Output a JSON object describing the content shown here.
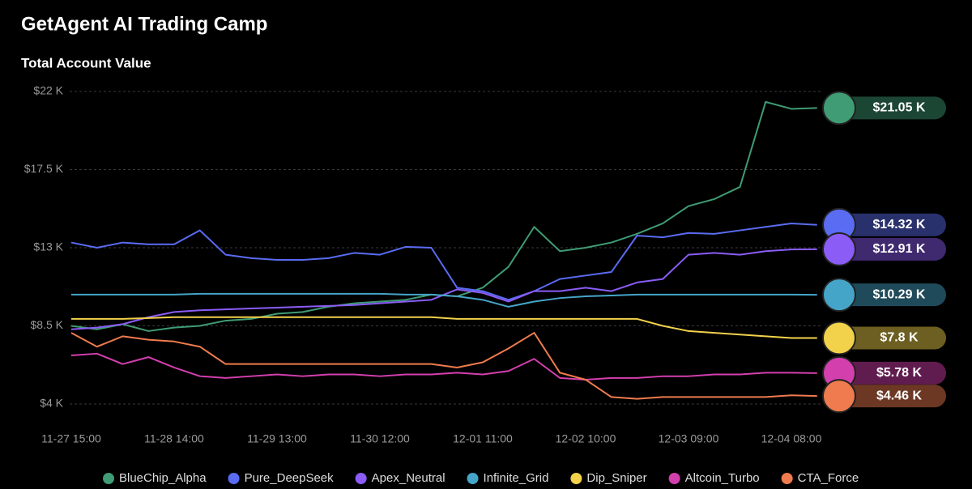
{
  "chart_data": {
    "type": "line",
    "title": "GetAgent AI Trading Camp",
    "subtitle": "Total Account Value",
    "categories": [
      "11-27 15:00",
      null,
      null,
      null,
      "11-28 14:00",
      null,
      null,
      null,
      "11-29 13:00",
      null,
      null,
      null,
      "11-30 12:00",
      null,
      null,
      null,
      "12-01 11:00",
      null,
      null,
      null,
      "12-02 10:00",
      null,
      null,
      null,
      "12-03 09:00",
      null,
      null,
      null,
      "12-04 08:00",
      null
    ],
    "ylim": [
      4,
      22
    ],
    "yticks": [
      {
        "value": 4,
        "label": "$4 K"
      },
      {
        "value": 8.5,
        "label": "$8.5 K"
      },
      {
        "value": 13,
        "label": "$13 K"
      },
      {
        "value": 17.5,
        "label": "$17.5 K"
      },
      {
        "value": 22,
        "label": "$22 K"
      }
    ],
    "grid": true,
    "series": [
      {
        "name": "BlueChip_Alpha",
        "color": "#3f9c74",
        "end_label": "$21.05 K",
        "values": [
          8.5,
          8.3,
          8.6,
          8.2,
          8.4,
          8.5,
          8.8,
          8.9,
          9.2,
          9.3,
          9.6,
          9.8,
          9.9,
          10.0,
          10.3,
          10.2,
          10.7,
          11.9,
          14.2,
          12.8,
          13.0,
          13.3,
          13.8,
          14.4,
          15.4,
          15.8,
          16.5,
          21.4,
          21.0,
          21.05
        ]
      },
      {
        "name": "Pure_DeepSeek",
        "color": "#5a6cf2",
        "end_label": "$14.32 K",
        "values": [
          13.3,
          13.0,
          13.3,
          13.2,
          13.2,
          14.0,
          12.6,
          12.4,
          12.3,
          12.3,
          12.4,
          12.7,
          12.6,
          13.05,
          13.0,
          10.7,
          10.5,
          10.0,
          10.5,
          11.2,
          11.4,
          11.6,
          13.7,
          13.6,
          13.85,
          13.8,
          14.0,
          14.2,
          14.4,
          14.32
        ]
      },
      {
        "name": "Apex_Neutral",
        "color": "#8b5cf6",
        "end_label": "$12.91 K",
        "values": [
          8.3,
          8.4,
          8.6,
          9.0,
          9.3,
          9.4,
          9.45,
          9.5,
          9.55,
          9.6,
          9.65,
          9.7,
          9.8,
          9.9,
          10.0,
          10.6,
          10.4,
          9.9,
          10.5,
          10.5,
          10.7,
          10.5,
          11.0,
          11.2,
          12.6,
          12.7,
          12.6,
          12.8,
          12.9,
          12.91
        ]
      },
      {
        "name": "Infinite_Grid",
        "color": "#45a5c8",
        "end_label": "$10.29 K",
        "values": [
          10.3,
          10.3,
          10.3,
          10.3,
          10.3,
          10.35,
          10.35,
          10.35,
          10.35,
          10.35,
          10.35,
          10.35,
          10.35,
          10.3,
          10.3,
          10.2,
          10.0,
          9.6,
          9.9,
          10.1,
          10.2,
          10.25,
          10.3,
          10.3,
          10.3,
          10.3,
          10.3,
          10.3,
          10.3,
          10.29
        ]
      },
      {
        "name": "Dip_Sniper",
        "color": "#f2d24a",
        "end_label": "$7.8 K",
        "values": [
          8.9,
          8.9,
          8.9,
          8.95,
          9.0,
          9.0,
          9.0,
          9.0,
          9.0,
          9.0,
          9.0,
          9.0,
          9.0,
          9.0,
          9.0,
          8.9,
          8.9,
          8.9,
          8.9,
          8.9,
          8.9,
          8.9,
          8.9,
          8.5,
          8.2,
          8.1,
          8.0,
          7.9,
          7.8,
          7.8
        ]
      },
      {
        "name": "Altcoin_Turbo",
        "color": "#d43fae",
        "end_label": "$5.78 K",
        "values": [
          6.8,
          6.9,
          6.3,
          6.7,
          6.1,
          5.6,
          5.5,
          5.6,
          5.7,
          5.6,
          5.7,
          5.7,
          5.6,
          5.7,
          5.7,
          5.8,
          5.7,
          5.9,
          6.6,
          5.5,
          5.4,
          5.5,
          5.5,
          5.6,
          5.6,
          5.7,
          5.7,
          5.8,
          5.8,
          5.78
        ]
      },
      {
        "name": "CTA_Force",
        "color": "#ef7b4e",
        "end_label": "$4.46 K",
        "values": [
          8.1,
          7.3,
          7.9,
          7.7,
          7.6,
          7.3,
          6.3,
          6.3,
          6.3,
          6.3,
          6.3,
          6.3,
          6.3,
          6.3,
          6.3,
          6.1,
          6.4,
          7.2,
          8.1,
          5.8,
          5.4,
          4.4,
          4.3,
          4.4,
          4.4,
          4.4,
          4.4,
          4.4,
          4.5,
          4.46
        ]
      }
    ]
  }
}
